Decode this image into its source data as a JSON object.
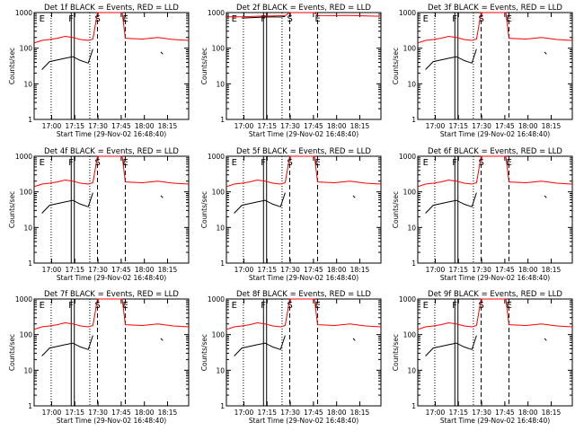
{
  "chart_data": {
    "type": "line",
    "layout": "3x3 grid",
    "panel_ylabel": "Counts/sec",
    "panel_xlabel": "Start Time (29-Nov-02 16:48:40)",
    "x_range_min": [
      0,
      100
    ],
    "x_tick_labels": [
      "17:00",
      "17:15",
      "17:30",
      "17:45",
      "18:00",
      "18:15"
    ],
    "x_tick_values_min": [
      11.33,
      26.33,
      41.33,
      56.33,
      71.33,
      86.33
    ],
    "y_scale": "log",
    "y_range": [
      1,
      1000
    ],
    "y_tick_labels": [
      "1",
      "10",
      "100",
      "1000"
    ],
    "y_tick_values": [
      1,
      10,
      100,
      1000
    ],
    "marker_labels": {
      "E": "E",
      "F": "F",
      "S": "S"
    },
    "colors": {
      "events": "#000000",
      "lld": "#ff0000"
    },
    "panels": [
      {
        "title": "Det 1f BLACK = Events, RED = LLD",
        "series": [
          {
            "name": "Events",
            "color": "#000000",
            "segments": [
              {
                "x": [
                  5.0,
                  10,
                  15,
                  20,
                  25,
                  30,
                  35,
                  38
                ],
                "y": [
                  25,
                  42,
                  47,
                  52,
                  58,
                  45,
                  38,
                  95
                ]
              },
              {
                "x": [
                  82.0,
                  83.3
                ],
                "y": [
                  78,
                  68
                ]
              }
            ]
          },
          {
            "name": "LLD",
            "color": "#ff0000",
            "segments": [
              {
                "x": [
                  0,
                  5,
                  10,
                  15,
                  20,
                  25,
                  30,
                  35,
                  38
                ],
                "y": [
                  140,
                  165,
                  175,
                  190,
                  215,
                  200,
                  175,
                  165,
                  180
                ]
              },
              {
                "x": [
                  38,
                  41,
                  57,
                  59,
                  70,
                  80,
                  90,
                  100
                ],
                "y": [
                  180,
                  1000,
                  1000,
                  190,
                  180,
                  200,
                  175,
                  165
                ]
              }
            ]
          }
        ]
      },
      {
        "title": "Det 2f BLACK = Events, RED = LLD",
        "series": [
          {
            "name": "Events",
            "color": "#000000",
            "segments": [
              {
                "x": [
                  10.0,
                  15,
                  20,
                  25,
                  30,
                  35,
                  38
                ],
                "y": [
                  700,
                  720,
                  730,
                  750,
                  760,
                  750,
                  780
                ]
              }
            ]
          },
          {
            "name": "LLD",
            "color": "#ff0000",
            "segments": [
              {
                "x": [
                  0,
                  10,
                  20,
                  30,
                  38
                ],
                "y": [
                  760,
                  760,
                  790,
                  800,
                  820
                ]
              },
              {
                "x": [
                  38,
                  41,
                  57,
                  59,
                  70,
                  80,
                  90,
                  100
                ],
                "y": [
                  820,
                  1000,
                  1000,
                  830,
                  820,
                  830,
                  800,
                  790
                ]
              }
            ]
          }
        ]
      },
      {
        "title": "Det 3f BLACK = Events, RED = LLD",
        "series": [
          {
            "name": "Events",
            "color": "#000000",
            "segments": [
              {
                "x": [
                  5.0,
                  10,
                  15,
                  20,
                  25,
                  30,
                  35,
                  38
                ],
                "y": [
                  25,
                  42,
                  47,
                  52,
                  58,
                  45,
                  38,
                  95
                ]
              },
              {
                "x": [
                  82.0,
                  83.3
                ],
                "y": [
                  78,
                  68
                ]
              }
            ]
          },
          {
            "name": "LLD",
            "color": "#ff0000",
            "segments": [
              {
                "x": [
                  0,
                  5,
                  10,
                  15,
                  20,
                  25,
                  30,
                  35,
                  38
                ],
                "y": [
                  140,
                  165,
                  175,
                  190,
                  215,
                  200,
                  175,
                  165,
                  180
                ]
              },
              {
                "x": [
                  38,
                  41,
                  57,
                  59,
                  70,
                  80,
                  90,
                  100
                ],
                "y": [
                  180,
                  1000,
                  1000,
                  190,
                  180,
                  200,
                  175,
                  165
                ]
              }
            ]
          }
        ]
      },
      {
        "title": "Det 4f BLACK = Events, RED = LLD",
        "series": [
          {
            "name": "Events",
            "color": "#000000",
            "segments": [
              {
                "x": [
                  5.0,
                  10,
                  15,
                  20,
                  25,
                  30,
                  35,
                  38
                ],
                "y": [
                  25,
                  42,
                  47,
                  52,
                  58,
                  45,
                  38,
                  95
                ]
              },
              {
                "x": [
                  82.0,
                  83.3
                ],
                "y": [
                  78,
                  68
                ]
              }
            ]
          },
          {
            "name": "LLD",
            "color": "#ff0000",
            "segments": [
              {
                "x": [
                  0,
                  5,
                  10,
                  15,
                  20,
                  25,
                  30,
                  35,
                  38
                ],
                "y": [
                  140,
                  165,
                  175,
                  190,
                  215,
                  200,
                  175,
                  165,
                  180
                ]
              },
              {
                "x": [
                  38,
                  41,
                  57,
                  59,
                  70,
                  80,
                  90,
                  100
                ],
                "y": [
                  180,
                  1000,
                  1000,
                  190,
                  180,
                  200,
                  175,
                  165
                ]
              }
            ]
          }
        ]
      },
      {
        "title": "Det 5f BLACK = Events, RED = LLD",
        "series": [
          {
            "name": "Events",
            "color": "#000000",
            "segments": [
              {
                "x": [
                  5.0,
                  10,
                  15,
                  20,
                  25,
                  30,
                  35,
                  38
                ],
                "y": [
                  25,
                  42,
                  47,
                  52,
                  58,
                  45,
                  38,
                  95
                ]
              },
              {
                "x": [
                  82.0,
                  83.3
                ],
                "y": [
                  78,
                  68
                ]
              }
            ]
          },
          {
            "name": "LLD",
            "color": "#ff0000",
            "segments": [
              {
                "x": [
                  0,
                  5,
                  10,
                  15,
                  20,
                  25,
                  30,
                  35,
                  38
                ],
                "y": [
                  140,
                  165,
                  175,
                  190,
                  215,
                  200,
                  175,
                  165,
                  180
                ]
              },
              {
                "x": [
                  38,
                  41,
                  57,
                  59,
                  70,
                  80,
                  90,
                  100
                ],
                "y": [
                  180,
                  1000,
                  1000,
                  190,
                  180,
                  200,
                  175,
                  165
                ]
              }
            ]
          }
        ]
      },
      {
        "title": "Det 6f BLACK = Events, RED = LLD",
        "series": [
          {
            "name": "Events",
            "color": "#000000",
            "segments": [
              {
                "x": [
                  5.0,
                  10,
                  15,
                  20,
                  25,
                  30,
                  35,
                  38
                ],
                "y": [
                  25,
                  42,
                  47,
                  52,
                  58,
                  45,
                  38,
                  95
                ]
              },
              {
                "x": [
                  82.0,
                  83.3
                ],
                "y": [
                  78,
                  68
                ]
              }
            ]
          },
          {
            "name": "LLD",
            "color": "#ff0000",
            "segments": [
              {
                "x": [
                  0,
                  5,
                  10,
                  15,
                  20,
                  25,
                  30,
                  35,
                  38
                ],
                "y": [
                  140,
                  165,
                  175,
                  190,
                  215,
                  200,
                  175,
                  165,
                  180
                ]
              },
              {
                "x": [
                  38,
                  41,
                  57,
                  59,
                  70,
                  80,
                  90,
                  100
                ],
                "y": [
                  180,
                  1000,
                  1000,
                  190,
                  180,
                  200,
                  175,
                  165
                ]
              }
            ]
          }
        ]
      },
      {
        "title": "Det 7f BLACK = Events, RED = LLD",
        "series": [
          {
            "name": "Events",
            "color": "#000000",
            "segments": [
              {
                "x": [
                  5.0,
                  10,
                  15,
                  20,
                  25,
                  30,
                  35,
                  38
                ],
                "y": [
                  25,
                  42,
                  47,
                  52,
                  58,
                  45,
                  38,
                  95
                ]
              },
              {
                "x": [
                  82.0,
                  83.3
                ],
                "y": [
                  78,
                  68
                ]
              }
            ]
          },
          {
            "name": "LLD",
            "color": "#ff0000",
            "segments": [
              {
                "x": [
                  0,
                  5,
                  10,
                  15,
                  20,
                  25,
                  30,
                  35,
                  38
                ],
                "y": [
                  140,
                  165,
                  175,
                  190,
                  215,
                  200,
                  175,
                  165,
                  180
                ]
              },
              {
                "x": [
                  38,
                  41,
                  57,
                  59,
                  70,
                  80,
                  90,
                  100
                ],
                "y": [
                  180,
                  1000,
                  1000,
                  190,
                  180,
                  200,
                  175,
                  165
                ]
              }
            ]
          }
        ]
      },
      {
        "title": "Det 8f BLACK = Events, RED = LLD",
        "series": [
          {
            "name": "Events",
            "color": "#000000",
            "segments": [
              {
                "x": [
                  5.0,
                  10,
                  15,
                  20,
                  25,
                  30,
                  35,
                  38
                ],
                "y": [
                  25,
                  42,
                  47,
                  52,
                  58,
                  45,
                  38,
                  95
                ]
              },
              {
                "x": [
                  82.0,
                  83.3
                ],
                "y": [
                  78,
                  68
                ]
              }
            ]
          },
          {
            "name": "LLD",
            "color": "#ff0000",
            "segments": [
              {
                "x": [
                  0,
                  5,
                  10,
                  15,
                  20,
                  25,
                  30,
                  35,
                  38
                ],
                "y": [
                  140,
                  165,
                  175,
                  190,
                  215,
                  200,
                  175,
                  165,
                  180
                ]
              },
              {
                "x": [
                  38,
                  41,
                  57,
                  59,
                  70,
                  80,
                  90,
                  100
                ],
                "y": [
                  180,
                  1000,
                  1000,
                  190,
                  180,
                  200,
                  175,
                  165
                ]
              }
            ]
          }
        ]
      },
      {
        "title": "Det 9f BLACK = Events, RED = LLD",
        "series": [
          {
            "name": "Events",
            "color": "#000000",
            "segments": [
              {
                "x": [
                  5.0,
                  10,
                  15,
                  20,
                  25,
                  30,
                  35,
                  38
                ],
                "y": [
                  25,
                  42,
                  47,
                  52,
                  58,
                  45,
                  38,
                  95
                ]
              },
              {
                "x": [
                  82.0,
                  83.3
                ],
                "y": [
                  78,
                  68
                ]
              }
            ]
          },
          {
            "name": "LLD",
            "color": "#ff0000",
            "segments": [
              {
                "x": [
                  0,
                  5,
                  10,
                  15,
                  20,
                  25,
                  30,
                  35,
                  38
                ],
                "y": [
                  140,
                  165,
                  175,
                  190,
                  215,
                  200,
                  175,
                  165,
                  180
                ]
              },
              {
                "x": [
                  38,
                  41,
                  57,
                  59,
                  70,
                  80,
                  90,
                  100
                ],
                "y": [
                  180,
                  1000,
                  1000,
                  190,
                  180,
                  200,
                  175,
                  165
                ]
              }
            ]
          }
        ]
      }
    ]
  }
}
